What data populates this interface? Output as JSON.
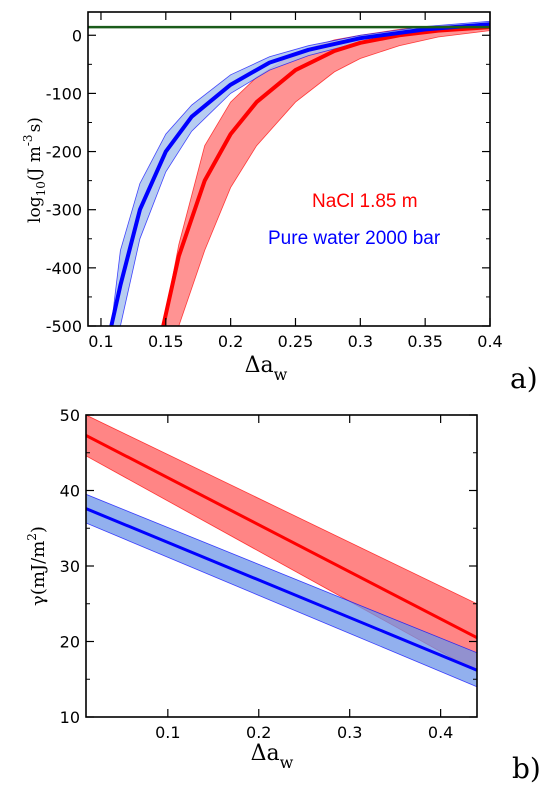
{
  "chart_data": [
    {
      "panel_label": "a)",
      "type": "line",
      "xlabel": "Δa",
      "xlabel_sub": "w",
      "ylabel": "log",
      "ylabel_sub": "10",
      "ylabel_unit": "(J m",
      "ylabel_sup": "-3",
      "ylabel_tail": "s)",
      "xlim": [
        0.09,
        0.4
      ],
      "ylim": [
        -500,
        40
      ],
      "x_ticks": [
        0.1,
        0.15,
        0.2,
        0.25,
        0.3,
        0.35,
        0.4
      ],
      "x_tick_labels": [
        "0.1",
        "0.15",
        "0.2",
        "0.25",
        "0.3",
        "0.35",
        "0.4"
      ],
      "y_ticks": [
        0,
        -100,
        -200,
        -300,
        -400,
        -500
      ],
      "y_tick_labels": [
        "0",
        "-100",
        "-200",
        "-300",
        "-400",
        "-500"
      ],
      "hline": {
        "y": 14,
        "color": "#1a5c1a"
      },
      "series": [
        {
          "name": "NaCl 1.85 m",
          "color": "#ff0000",
          "band_color": "#ff8080",
          "x": [
            0.148,
            0.16,
            0.18,
            0.2,
            0.22,
            0.25,
            0.28,
            0.3,
            0.33,
            0.36,
            0.4
          ],
          "y": [
            -500,
            -380,
            -250,
            -170,
            -115,
            -60,
            -27,
            -13,
            0,
            8,
            14
          ],
          "upper": [
            -500,
            -360,
            -190,
            -115,
            -72,
            -30,
            -8,
            0,
            10,
            16,
            20
          ],
          "lower": [
            -500,
            -500,
            -370,
            -262,
            -190,
            -115,
            -63,
            -40,
            -18,
            -3,
            8
          ]
        },
        {
          "name": "Pure water 2000 bar",
          "color": "#0000ff",
          "band_color": "#aac4ee",
          "x": [
            0.108,
            0.115,
            0.13,
            0.15,
            0.17,
            0.2,
            0.23,
            0.26,
            0.3,
            0.35,
            0.4
          ],
          "y": [
            -500,
            -430,
            -300,
            -200,
            -140,
            -85,
            -47,
            -25,
            -5,
            10,
            19
          ],
          "upper": [
            -500,
            -370,
            -255,
            -170,
            -120,
            -68,
            -37,
            -18,
            0,
            15,
            24
          ],
          "lower": [
            -500,
            -500,
            -350,
            -235,
            -165,
            -100,
            -60,
            -35,
            -12,
            6,
            16
          ]
        }
      ]
    },
    {
      "panel_label": "b)",
      "type": "line",
      "xlabel": "Δa",
      "xlabel_sub": "w",
      "ylabel": "γ(mJ/m",
      "ylabel_sup": "2",
      "ylabel_tail": ")",
      "xlim": [
        0.01,
        0.44
      ],
      "ylim": [
        10,
        50
      ],
      "x_ticks": [
        0.1,
        0.2,
        0.3,
        0.4
      ],
      "x_tick_labels": [
        "0.1",
        "0.2",
        "0.3",
        "0.4"
      ],
      "y_ticks": [
        10,
        20,
        30,
        40,
        50
      ],
      "y_tick_labels": [
        "10",
        "20",
        "30",
        "40",
        "50"
      ],
      "series": [
        {
          "name": "NaCl 1.85 m",
          "color": "#ff0000",
          "band_color": "#ff7070",
          "x": [
            0.01,
            0.44
          ],
          "y": [
            47.3,
            20.5
          ],
          "upper": [
            50.0,
            25.0
          ],
          "lower": [
            44.6,
            16.0
          ]
        },
        {
          "name": "Pure water 2000 bar",
          "color": "#0000ff",
          "band_color": "#6e96e8",
          "x": [
            0.01,
            0.44
          ],
          "y": [
            37.6,
            16.2
          ],
          "upper": [
            39.5,
            18.5
          ],
          "lower": [
            35.7,
            14.0
          ]
        }
      ]
    }
  ]
}
